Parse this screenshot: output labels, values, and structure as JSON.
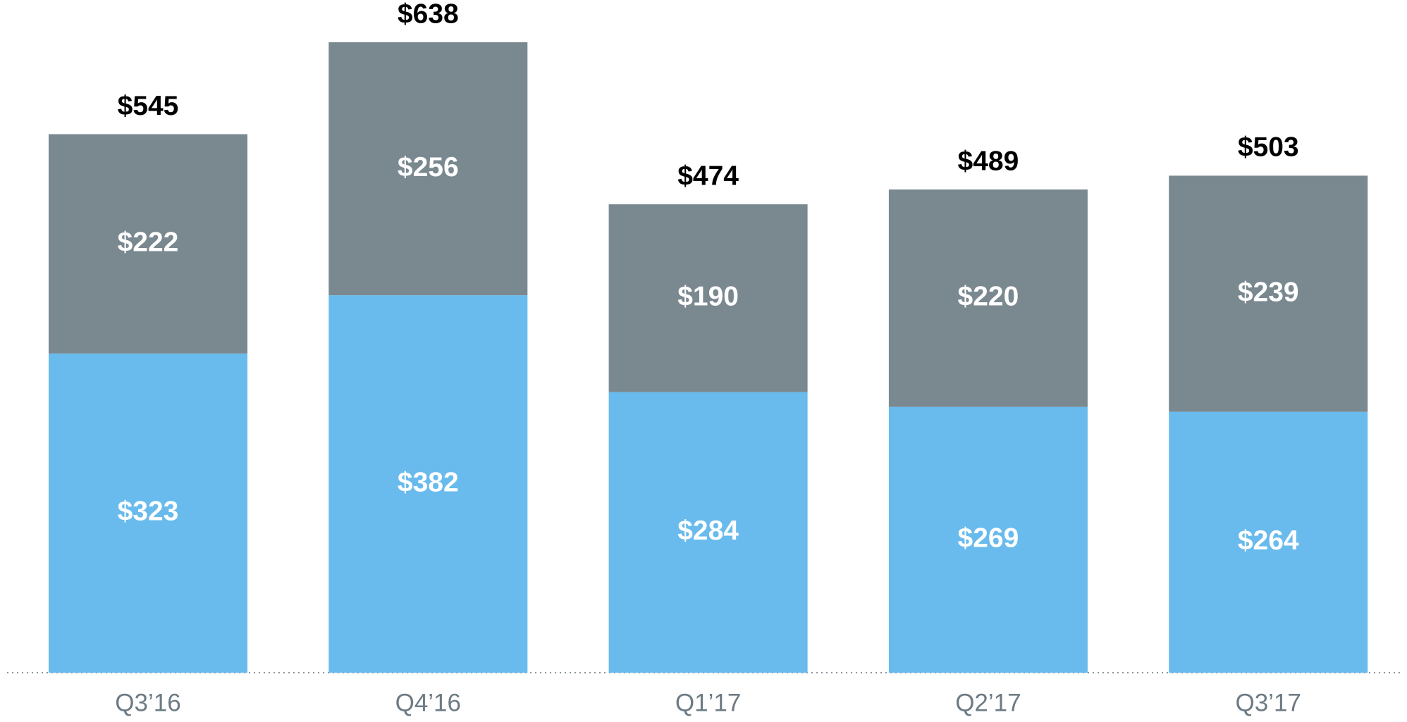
{
  "chart_data": {
    "type": "stacked_bar",
    "categories": [
      "Q3’16",
      "Q4’16",
      "Q1’17",
      "Q2’17",
      "Q3’17"
    ],
    "series": [
      {
        "color": "#68bbec",
        "values": [
          323,
          382,
          284,
          269,
          264
        ],
        "value_labels": [
          "$323",
          "$382",
          "$284",
          "$269",
          "$264"
        ]
      },
      {
        "color": "#7a8890",
        "values": [
          222,
          256,
          190,
          220,
          239
        ],
        "value_labels": [
          "$222",
          "$256",
          "$190",
          "$220",
          "$239"
        ]
      }
    ],
    "totals": [
      545,
      638,
      474,
      489,
      503
    ],
    "total_labels": [
      "$545",
      "$638",
      "$474",
      "$489",
      "$503"
    ]
  }
}
